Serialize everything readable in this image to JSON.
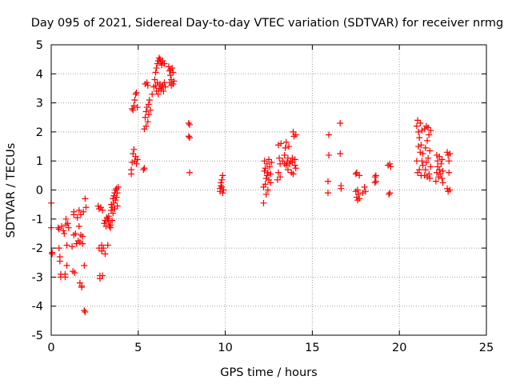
{
  "chart_data": {
    "type": "scatter",
    "title": "Day 095 of 2021, Sidereal Day-to-day VTEC variation (SDTVAR) for receiver nrmg",
    "xlabel": "GPS time / hours",
    "ylabel": "SDTVAR / TECUs",
    "xlim": [
      0,
      25
    ],
    "ylim": [
      -5,
      5
    ],
    "xticks": [
      "0",
      "5",
      "10",
      "15",
      "20",
      "25"
    ],
    "yticks": [
      "-5",
      "-4",
      "-3",
      "-2",
      "-1",
      "0",
      "1",
      "2",
      "3",
      "4",
      "5"
    ],
    "grid": true,
    "marker": "plus",
    "color": "#ff0000",
    "points": [
      [
        0.0,
        -0.45
      ],
      [
        0.0,
        -1.3
      ],
      [
        0.05,
        -2.15
      ],
      [
        0.05,
        -2.2
      ],
      [
        0.4,
        -1.3
      ],
      [
        0.45,
        -1.35
      ],
      [
        0.45,
        -2.0
      ],
      [
        0.5,
        -2.3
      ],
      [
        0.5,
        -2.45
      ],
      [
        0.55,
        -2.9
      ],
      [
        0.55,
        -3.0
      ],
      [
        0.6,
        -1.25
      ],
      [
        0.7,
        -1.4
      ],
      [
        0.75,
        -1.5
      ],
      [
        0.8,
        -2.9
      ],
      [
        0.8,
        -3.0
      ],
      [
        0.85,
        -1.2
      ],
      [
        0.85,
        -1.0
      ],
      [
        0.9,
        -1.9
      ],
      [
        0.9,
        -2.6
      ],
      [
        0.95,
        -1.15
      ],
      [
        1.0,
        -1.3
      ],
      [
        1.2,
        -1.95
      ],
      [
        1.25,
        -2.8
      ],
      [
        1.3,
        -0.85
      ],
      [
        1.3,
        -0.75
      ],
      [
        1.3,
        -1.55
      ],
      [
        1.35,
        -2.85
      ],
      [
        1.4,
        -1.5
      ],
      [
        1.45,
        -1.85
      ],
      [
        1.5,
        -0.95
      ],
      [
        1.55,
        -1.75
      ],
      [
        1.6,
        -1.25
      ],
      [
        1.6,
        -0.7
      ],
      [
        1.65,
        -1.8
      ],
      [
        1.65,
        -3.2
      ],
      [
        1.7,
        -1.55
      ],
      [
        1.7,
        -0.85
      ],
      [
        1.75,
        -3.3
      ],
      [
        1.75,
        -3.35
      ],
      [
        1.8,
        -1.85
      ],
      [
        1.8,
        -1.6
      ],
      [
        1.85,
        -0.75
      ],
      [
        1.9,
        -2.6
      ],
      [
        1.9,
        -4.15
      ],
      [
        1.95,
        -4.2
      ],
      [
        1.95,
        -0.3
      ],
      [
        2.0,
        -0.6
      ],
      [
        2.7,
        -0.55
      ],
      [
        2.75,
        -0.65
      ],
      [
        2.75,
        -2.0
      ],
      [
        2.8,
        -2.95
      ],
      [
        2.8,
        -3.05
      ],
      [
        2.85,
        -0.6
      ],
      [
        2.9,
        -1.9
      ],
      [
        2.9,
        -2.1
      ],
      [
        2.95,
        -0.7
      ],
      [
        2.95,
        -2.95
      ],
      [
        3.0,
        -2.0
      ],
      [
        3.05,
        -1.15
      ],
      [
        3.1,
        -1.05
      ],
      [
        3.1,
        -2.2
      ],
      [
        3.15,
        -1.25
      ],
      [
        3.2,
        -0.95
      ],
      [
        3.25,
        -1.0
      ],
      [
        3.25,
        -1.9
      ],
      [
        3.3,
        -1.1
      ],
      [
        3.3,
        -0.9
      ],
      [
        3.35,
        -1.25
      ],
      [
        3.4,
        -1.3
      ],
      [
        3.4,
        -1.2
      ],
      [
        3.45,
        -0.5
      ],
      [
        3.45,
        -0.7
      ],
      [
        3.5,
        -0.6
      ],
      [
        3.5,
        -1.05
      ],
      [
        3.55,
        -0.3
      ],
      [
        3.55,
        -0.8
      ],
      [
        3.6,
        -0.2
      ],
      [
        3.6,
        -0.45
      ],
      [
        3.65,
        -0.1
      ],
      [
        3.65,
        -0.65
      ],
      [
        3.7,
        0.0
      ],
      [
        3.7,
        -0.35
      ],
      [
        3.75,
        0.05
      ],
      [
        3.75,
        -0.25
      ],
      [
        3.8,
        -0.55
      ],
      [
        3.8,
        -0.1
      ],
      [
        3.85,
        0.1
      ],
      [
        4.6,
        0.55
      ],
      [
        4.6,
        0.7
      ],
      [
        4.65,
        0.95
      ],
      [
        4.65,
        2.8
      ],
      [
        4.7,
        1.25
      ],
      [
        4.7,
        2.75
      ],
      [
        4.75,
        1.4
      ],
      [
        4.75,
        2.9
      ],
      [
        4.8,
        1.0
      ],
      [
        4.8,
        3.1
      ],
      [
        4.85,
        3.3
      ],
      [
        4.85,
        1.15
      ],
      [
        4.9,
        3.35
      ],
      [
        4.9,
        0.9
      ],
      [
        4.95,
        1.05
      ],
      [
        4.95,
        2.85
      ],
      [
        5.3,
        0.7
      ],
      [
        5.35,
        0.75
      ],
      [
        5.35,
        2.1
      ],
      [
        5.4,
        2.5
      ],
      [
        5.4,
        3.65
      ],
      [
        5.45,
        2.7
      ],
      [
        5.45,
        2.2
      ],
      [
        5.5,
        3.7
      ],
      [
        5.5,
        2.85
      ],
      [
        5.55,
        2.35
      ],
      [
        5.55,
        3.6
      ],
      [
        5.6,
        2.95
      ],
      [
        5.6,
        2.6
      ],
      [
        5.65,
        3.1
      ],
      [
        5.7,
        2.75
      ],
      [
        5.8,
        3.3
      ],
      [
        5.9,
        3.55
      ],
      [
        5.95,
        3.8
      ],
      [
        6.0,
        3.6
      ],
      [
        6.0,
        4.05
      ],
      [
        6.05,
        3.4
      ],
      [
        6.05,
        4.2
      ],
      [
        6.1,
        3.7
      ],
      [
        6.1,
        4.35
      ],
      [
        6.15,
        3.3
      ],
      [
        6.15,
        4.45
      ],
      [
        6.2,
        3.5
      ],
      [
        6.2,
        4.55
      ],
      [
        6.25,
        3.65
      ],
      [
        6.25,
        4.5
      ],
      [
        6.3,
        3.45
      ],
      [
        6.3,
        4.4
      ],
      [
        6.35,
        3.55
      ],
      [
        6.35,
        4.3
      ],
      [
        6.4,
        3.6
      ],
      [
        6.4,
        4.45
      ],
      [
        6.45,
        3.4
      ],
      [
        6.5,
        4.35
      ],
      [
        6.5,
        3.7
      ],
      [
        6.55,
        3.55
      ],
      [
        6.75,
        4.25
      ],
      [
        6.8,
        4.1
      ],
      [
        6.8,
        3.7
      ],
      [
        6.85,
        4.15
      ],
      [
        6.85,
        3.95
      ],
      [
        6.9,
        3.6
      ],
      [
        6.9,
        3.8
      ],
      [
        6.95,
        4.2
      ],
      [
        7.0,
        3.65
      ],
      [
        7.0,
        4.05
      ],
      [
        7.05,
        3.75
      ],
      [
        7.9,
        2.3
      ],
      [
        7.9,
        1.85
      ],
      [
        7.95,
        0.6
      ],
      [
        7.95,
        2.25
      ],
      [
        7.95,
        1.8
      ],
      [
        9.7,
        0.05
      ],
      [
        9.7,
        -0.05
      ],
      [
        9.75,
        0.25
      ],
      [
        9.75,
        0.15
      ],
      [
        9.8,
        0.1
      ],
      [
        9.8,
        0.35
      ],
      [
        9.85,
        0.5
      ],
      [
        9.85,
        -0.1
      ],
      [
        9.9,
        0.0
      ],
      [
        12.2,
        -0.45
      ],
      [
        12.2,
        0.1
      ],
      [
        12.25,
        0.65
      ],
      [
        12.25,
        1.0
      ],
      [
        12.3,
        0.2
      ],
      [
        12.3,
        0.75
      ],
      [
        12.35,
        0.4
      ],
      [
        12.35,
        -0.15
      ],
      [
        12.4,
        0.5
      ],
      [
        12.4,
        0.9
      ],
      [
        12.45,
        0.0
      ],
      [
        12.45,
        0.6
      ],
      [
        12.5,
        0.35
      ],
      [
        12.5,
        1.05
      ],
      [
        12.55,
        0.8
      ],
      [
        12.6,
        0.25
      ],
      [
        12.6,
        0.55
      ],
      [
        12.65,
        0.95
      ],
      [
        13.0,
        0.35
      ],
      [
        13.05,
        0.6
      ],
      [
        13.05,
        1.55
      ],
      [
        13.1,
        1.1
      ],
      [
        13.15,
        0.45
      ],
      [
        13.15,
        0.9
      ],
      [
        13.2,
        1.6
      ],
      [
        13.3,
        1.0
      ],
      [
        13.4,
        1.2
      ],
      [
        13.4,
        0.9
      ],
      [
        13.45,
        1.45
      ],
      [
        13.5,
        0.85
      ],
      [
        13.5,
        1.65
      ],
      [
        13.55,
        0.95
      ],
      [
        13.6,
        1.1
      ],
      [
        13.6,
        0.7
      ],
      [
        13.65,
        1.5
      ],
      [
        13.7,
        0.9
      ],
      [
        13.75,
        1.0
      ],
      [
        13.8,
        0.6
      ],
      [
        13.85,
        0.95
      ],
      [
        13.85,
        1.1
      ],
      [
        13.9,
        0.55
      ],
      [
        13.9,
        2.0
      ],
      [
        13.95,
        1.85
      ],
      [
        14.0,
        0.85
      ],
      [
        14.0,
        1.05
      ],
      [
        14.05,
        1.9
      ],
      [
        14.05,
        0.75
      ],
      [
        15.9,
        -0.1
      ],
      [
        15.9,
        0.3
      ],
      [
        15.95,
        1.2
      ],
      [
        15.95,
        1.9
      ],
      [
        16.6,
        2.3
      ],
      [
        16.6,
        1.25
      ],
      [
        16.65,
        0.15
      ],
      [
        16.65,
        0.05
      ],
      [
        17.5,
        -0.05
      ],
      [
        17.5,
        0.55
      ],
      [
        17.55,
        0.6
      ],
      [
        17.55,
        -0.25
      ],
      [
        17.6,
        0.0
      ],
      [
        17.6,
        -0.35
      ],
      [
        17.65,
        -0.15
      ],
      [
        17.7,
        0.5
      ],
      [
        17.7,
        -0.3
      ],
      [
        17.9,
        -0.1
      ],
      [
        18.0,
        0.1
      ],
      [
        18.05,
        -0.05
      ],
      [
        18.6,
        0.25
      ],
      [
        18.6,
        0.45
      ],
      [
        18.65,
        0.3
      ],
      [
        18.65,
        0.5
      ],
      [
        19.35,
        0.85
      ],
      [
        19.4,
        -0.15
      ],
      [
        19.45,
        0.9
      ],
      [
        19.45,
        -0.1
      ],
      [
        19.5,
        0.8
      ],
      [
        21.0,
        1.0
      ],
      [
        21.0,
        2.2
      ],
      [
        21.05,
        0.6
      ],
      [
        21.05,
        2.4
      ],
      [
        21.1,
        1.5
      ],
      [
        21.1,
        2.0
      ],
      [
        21.15,
        0.7
      ],
      [
        21.15,
        1.8
      ],
      [
        21.2,
        1.3
      ],
      [
        21.2,
        2.3
      ],
      [
        21.25,
        0.5
      ],
      [
        21.25,
        1.55
      ],
      [
        21.3,
        1.0
      ],
      [
        21.3,
        2.05
      ],
      [
        21.35,
        0.85
      ],
      [
        21.35,
        1.25
      ],
      [
        21.45,
        0.5
      ],
      [
        21.45,
        2.1
      ],
      [
        21.5,
        0.7
      ],
      [
        21.5,
        1.45
      ],
      [
        21.55,
        2.2
      ],
      [
        21.55,
        0.95
      ],
      [
        21.6,
        0.45
      ],
      [
        21.6,
        1.7
      ],
      [
        21.65,
        2.15
      ],
      [
        21.65,
        1.1
      ],
      [
        21.7,
        0.55
      ],
      [
        21.7,
        1.9
      ],
      [
        21.75,
        0.4
      ],
      [
        21.75,
        1.35
      ],
      [
        21.8,
        0.8
      ],
      [
        21.8,
        2.05
      ],
      [
        22.1,
        0.3
      ],
      [
        22.15,
        0.6
      ],
      [
        22.15,
        1.2
      ],
      [
        22.2,
        0.8
      ],
      [
        22.2,
        1.0
      ],
      [
        22.25,
        0.45
      ],
      [
        22.3,
        0.7
      ],
      [
        22.3,
        1.15
      ],
      [
        22.35,
        0.55
      ],
      [
        22.4,
        0.9
      ],
      [
        22.45,
        0.4
      ],
      [
        22.45,
        1.05
      ],
      [
        22.5,
        0.65
      ],
      [
        22.5,
        0.25
      ],
      [
        22.75,
        0.05
      ],
      [
        22.75,
        1.3
      ],
      [
        22.8,
        -0.05
      ],
      [
        22.8,
        1.2
      ],
      [
        22.85,
        0.6
      ],
      [
        22.85,
        1.0
      ],
      [
        22.9,
        1.25
      ],
      [
        22.9,
        0.0
      ]
    ]
  }
}
